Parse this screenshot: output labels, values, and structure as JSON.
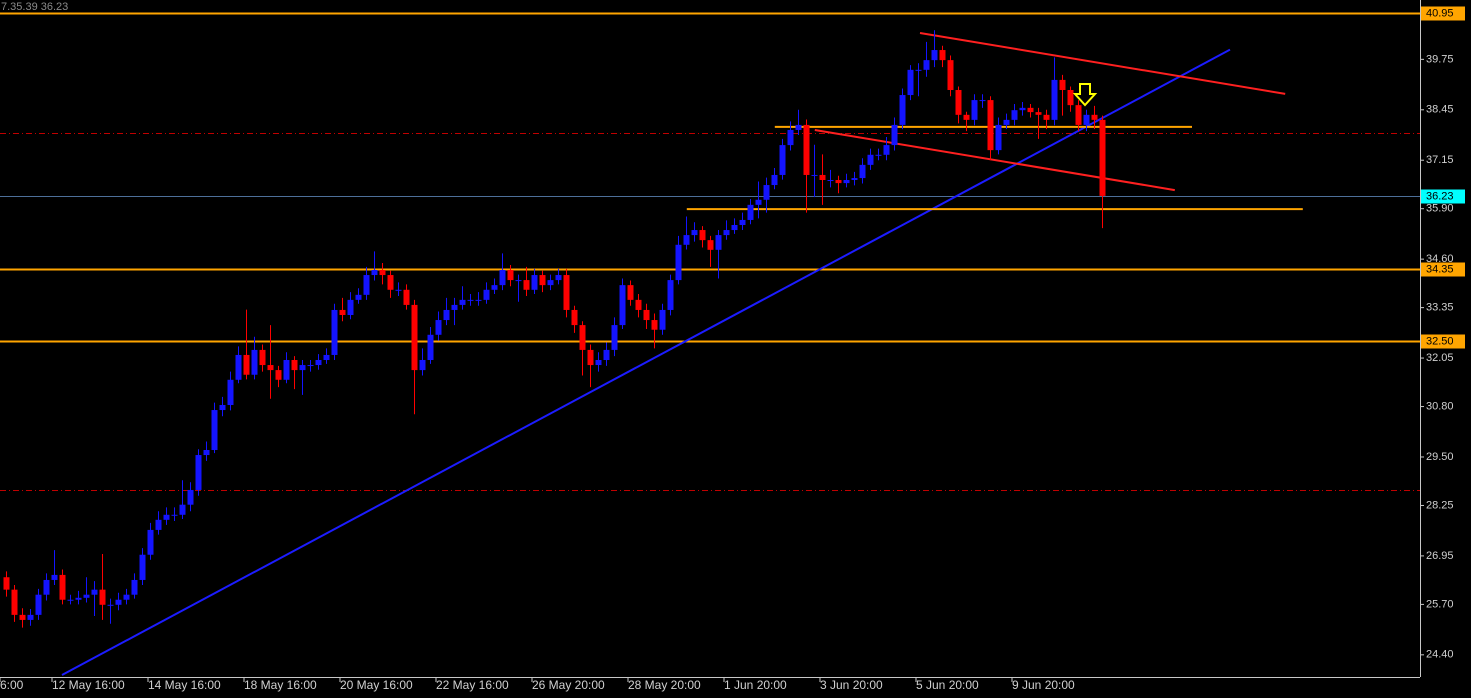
{
  "chart_data": {
    "type": "candlestick",
    "corner_text": "7.35.39 36.23",
    "up_color": "#1414ff",
    "down_color": "#ff0000",
    "ylim": [
      23.88,
      41.28
    ],
    "yticks": [
      {
        "value": 24.4,
        "label": "24.40"
      },
      {
        "value": 25.7,
        "label": "25.70"
      },
      26.95,
      28.25,
      {
        "value": 29.5,
        "label": "29.50"
      },
      {
        "value": 30.8,
        "label": "30.80"
      },
      32.05,
      33.35,
      {
        "value": 34.6,
        "label": "34.60"
      },
      {
        "value": 35.9,
        "label": "35.90"
      },
      37.15,
      38.45,
      39.75
    ],
    "xticks": [
      {
        "value": -0.5,
        "label": "6:00"
      },
      {
        "value": 6,
        "label": "12 May 16:00"
      },
      {
        "value": 18,
        "label": "14 May 16:00"
      },
      {
        "value": 30,
        "label": "18 May 16:00"
      },
      {
        "value": 42,
        "label": "20 May 16:00"
      },
      {
        "value": 54,
        "label": "22 May 16:00"
      },
      {
        "value": 66,
        "label": "26 May 20:00"
      },
      {
        "value": 78,
        "label": "28 May 20:00"
      },
      {
        "value": 90,
        "label": "1 Jun 20:00"
      },
      {
        "value": 102,
        "label": "3 Jun 20:00"
      },
      {
        "value": 114,
        "label": "5 Jun 20:00"
      },
      {
        "value": 126,
        "label": "9 Jun 20:00"
      }
    ],
    "levels": [
      {
        "price": 40.95,
        "color": "#ffa500"
      },
      {
        "price": 34.35,
        "color": "#ffa500"
      },
      {
        "price": {
          "value": 32.5,
          "label": "32.50"
        },
        "color": "#ffa500"
      }
    ],
    "current_price": {
      "price": 36.23,
      "color": "#4d6f99",
      "box_color": "#00ffff"
    },
    "dashdot_levels": [
      {
        "price": 37.85,
        "color": "#c00000"
      },
      {
        "price": 28.65,
        "color": "#c00000"
      }
    ],
    "lines": [
      {
        "x": [
          7,
          153
        ],
        "y": [
          23.88,
          40.0
        ],
        "color": "#1c1cff"
      },
      {
        "x": [
          114.25,
          159.9
        ],
        "y": [
          40.43,
          38.86
        ],
        "color": "#ff2020"
      },
      {
        "x": [
          101.1,
          146.1
        ],
        "y": [
          37.93,
          36.38
        ],
        "color": "#ff2020"
      },
      {
        "x": [
          96.1,
          148.25
        ],
        "y": [
          38.01,
          38.01
        ],
        "color": "#ffa500"
      },
      {
        "x": [
          85.1,
          162.1
        ],
        "y": [
          35.89,
          35.89
        ],
        "color": "#ffa500"
      }
    ],
    "open": [
      26.4,
      26.08,
      25.43,
      25.3,
      25.43,
      25.95,
      26.33,
      26.46,
      25.82,
      25.82,
      25.87,
      25.95,
      26.08,
      25.69,
      25.69,
      25.82,
      25.95,
      26.33,
      26.98,
      27.62,
      27.88,
      28.01,
      28.01,
      28.27,
      28.65,
      29.55,
      29.68,
      30.71,
      30.84,
      31.49,
      32.13,
      31.62,
      32.26,
      31.87,
      31.74,
      31.49,
      32.0,
      31.74,
      31.87,
      31.87,
      32.0,
      32.13,
      33.29,
      33.16,
      33.55,
      33.68,
      34.19,
      34.32,
      34.19,
      33.81,
      33.81,
      33.42,
      31.74,
      32.0,
      32.65,
      33.03,
      33.29,
      33.42,
      33.55,
      33.55,
      33.55,
      33.81,
      33.93,
      34.32,
      34.06,
      34.06,
      33.81,
      34.19,
      33.93,
      34.06,
      34.19,
      33.29,
      32.9,
      32.26,
      31.87,
      32.0,
      32.26,
      32.9,
      33.93,
      33.55,
      33.29,
      33.03,
      32.78,
      33.29,
      34.06,
      34.97,
      35.22,
      35.35,
      35.09,
      34.84,
      35.22,
      35.35,
      35.48,
      35.61,
      36.0,
      36.13,
      36.51,
      36.77,
      37.54,
      37.93,
      38.06,
      36.77,
      36.77,
      36.64,
      36.64,
      36.56,
      36.64,
      36.69,
      37.03,
      37.29,
      37.29,
      37.54,
      38.06,
      38.83,
      39.48,
      39.48,
      39.73,
      39.99,
      39.73,
      38.96,
      38.32,
      38.19,
      38.7,
      38.7,
      37.41,
      38.06,
      38.19,
      38.44,
      38.5,
      38.39,
      38.32,
      38.19,
      39.22,
      38.96,
      38.57,
      38.06,
      38.32,
      38.19
    ],
    "high": [
      26.55,
      26.2,
      25.6,
      25.58,
      26.1,
      26.5,
      27.1,
      26.6,
      25.95,
      26.05,
      26.4,
      26.3,
      27.0,
      25.85,
      26.0,
      26.1,
      26.5,
      27.15,
      27.8,
      28.1,
      28.2,
      28.2,
      28.9,
      28.85,
      29.7,
      29.9,
      30.9,
      31.05,
      31.7,
      32.35,
      33.3,
      32.6,
      32.4,
      32.9,
      31.85,
      32.2,
      32.1,
      32.0,
      32.0,
      32.15,
      32.3,
      33.45,
      33.6,
      33.75,
      33.85,
      34.4,
      34.8,
      34.5,
      34.3,
      34.0,
      33.95,
      33.55,
      32.3,
      32.85,
      33.25,
      33.6,
      33.6,
      33.9,
      33.7,
      33.75,
      34.0,
      34.1,
      34.75,
      34.45,
      34.2,
      34.4,
      34.35,
      34.3,
      34.2,
      34.35,
      34.35,
      33.4,
      33.0,
      32.4,
      32.2,
      32.45,
      33.1,
      34.1,
      34.05,
      33.7,
      33.45,
      33.2,
      33.45,
      34.2,
      35.2,
      35.7,
      35.55,
      35.45,
      35.2,
      35.35,
      35.6,
      35.65,
      35.8,
      36.15,
      36.6,
      36.7,
      36.95,
      37.7,
      38.15,
      38.45,
      38.2,
      37.55,
      37.3,
      36.9,
      36.75,
      36.8,
      36.85,
      37.2,
      37.45,
      37.45,
      37.75,
      38.25,
      39.0,
      39.6,
      39.65,
      40.2,
      40.5,
      40.1,
      39.85,
      39.05,
      38.4,
      38.85,
      38.85,
      38.8,
      38.25,
      38.35,
      38.6,
      38.65,
      38.6,
      38.5,
      38.45,
      39.8,
      39.35,
      39.05,
      38.7,
      38.45,
      38.55,
      38.3
    ],
    "low": [
      25.9,
      25.25,
      25.1,
      25.15,
      25.3,
      25.8,
      26.2,
      25.7,
      25.7,
      25.7,
      25.75,
      25.4,
      25.3,
      25.2,
      25.55,
      25.7,
      25.85,
      26.2,
      26.85,
      27.5,
      27.75,
      27.85,
      27.9,
      28.1,
      28.5,
      29.4,
      29.6,
      30.55,
      30.7,
      31.4,
      31.5,
      31.5,
      31.7,
      31.0,
      31.3,
      31.4,
      31.25,
      31.1,
      31.7,
      31.75,
      31.9,
      32.0,
      33.0,
      33.05,
      33.45,
      33.55,
      34.05,
      33.95,
      33.6,
      33.65,
      33.3,
      30.6,
      31.6,
      31.9,
      32.5,
      32.9,
      32.9,
      33.3,
      33.4,
      33.4,
      33.45,
      33.7,
      33.8,
      33.9,
      33.5,
      33.65,
      33.7,
      33.75,
      33.8,
      33.95,
      33.1,
      32.7,
      31.6,
      31.3,
      31.7,
      31.85,
      32.1,
      32.8,
      33.4,
      33.1,
      32.8,
      32.3,
      32.65,
      33.15,
      33.95,
      34.85,
      35.05,
      34.9,
      34.4,
      34.1,
      35.1,
      35.25,
      35.35,
      35.5,
      35.65,
      35.8,
      36.4,
      36.65,
      37.4,
      37.8,
      35.8,
      36.2,
      36.0,
      36.45,
      36.3,
      36.45,
      36.5,
      36.55,
      36.9,
      37.15,
      37.15,
      37.4,
      37.95,
      38.7,
      38.8,
      39.3,
      39.55,
      39.55,
      38.8,
      38.1,
      37.9,
      38.05,
      38.5,
      37.15,
      37.3,
      37.95,
      38.05,
      38.3,
      38.25,
      37.7,
      37.95,
      38.05,
      38.3,
      38.4,
      37.9,
      37.9,
      37.95,
      35.4
    ],
    "close": [
      26.08,
      25.43,
      25.3,
      25.43,
      25.95,
      26.33,
      26.46,
      25.82,
      25.82,
      25.87,
      25.95,
      26.08,
      25.69,
      25.69,
      25.82,
      25.95,
      26.33,
      26.98,
      27.62,
      27.88,
      28.01,
      28.01,
      28.27,
      28.65,
      29.55,
      29.68,
      30.71,
      30.84,
      31.49,
      32.13,
      31.62,
      32.26,
      31.87,
      31.74,
      31.49,
      32.0,
      31.74,
      31.87,
      31.87,
      32.0,
      32.13,
      33.29,
      33.16,
      33.55,
      33.68,
      34.19,
      34.32,
      34.19,
      33.81,
      33.81,
      33.42,
      31.74,
      32.0,
      32.65,
      33.03,
      33.29,
      33.42,
      33.55,
      33.55,
      33.55,
      33.81,
      33.93,
      34.32,
      34.06,
      34.06,
      33.81,
      34.19,
      33.93,
      34.06,
      34.19,
      33.29,
      32.9,
      32.26,
      31.87,
      32.0,
      32.26,
      32.9,
      33.93,
      33.55,
      33.29,
      33.03,
      32.78,
      33.29,
      34.06,
      34.97,
      35.22,
      35.35,
      35.09,
      34.84,
      35.22,
      35.35,
      35.48,
      35.61,
      36.0,
      36.13,
      36.51,
      36.77,
      37.54,
      37.93,
      38.06,
      36.77,
      36.77,
      36.64,
      36.64,
      36.56,
      36.64,
      36.69,
      37.03,
      37.29,
      37.29,
      37.54,
      38.06,
      38.83,
      39.48,
      39.48,
      39.73,
      39.99,
      39.73,
      38.96,
      38.32,
      38.19,
      38.7,
      38.7,
      37.41,
      38.06,
      38.19,
      38.44,
      38.5,
      38.39,
      38.32,
      38.19,
      39.22,
      38.96,
      38.57,
      38.06,
      38.32,
      38.19,
      36.23
    ]
  }
}
